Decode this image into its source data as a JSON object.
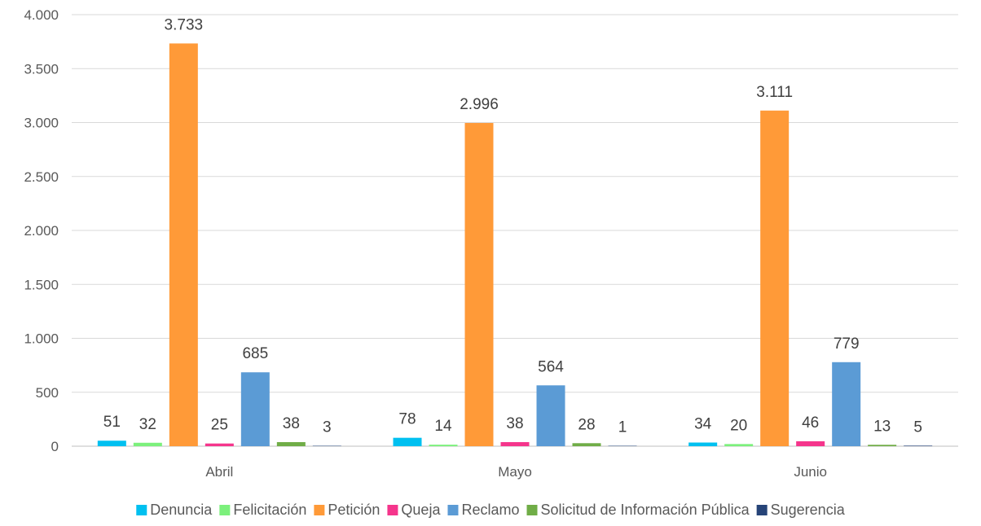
{
  "chart_data": {
    "type": "bar",
    "categories": [
      "Abril",
      "Mayo",
      "Junio"
    ],
    "series": [
      {
        "name": "Denuncia",
        "color": "#00C0F0",
        "values": [
          51,
          78,
          34
        ],
        "labels": [
          "51",
          "78",
          "34"
        ]
      },
      {
        "name": "Felicitación",
        "color": "#7CF07C",
        "values": [
          32,
          14,
          20
        ],
        "labels": [
          "32",
          "14",
          "20"
        ]
      },
      {
        "name": "Petición",
        "color": "#FF9A38",
        "values": [
          3733,
          2996,
          3111
        ],
        "labels": [
          "3.733",
          "2.996",
          "3.111"
        ]
      },
      {
        "name": "Queja",
        "color": "#F5358C",
        "values": [
          25,
          38,
          46
        ],
        "labels": [
          "25",
          "38",
          "46"
        ]
      },
      {
        "name": "Reclamo",
        "color": "#5B9BD5",
        "values": [
          685,
          564,
          779
        ],
        "labels": [
          "685",
          "564",
          "779"
        ]
      },
      {
        "name": "Solicitud de Información Pública",
        "color": "#70AD47",
        "values": [
          38,
          28,
          13
        ],
        "labels": [
          "38",
          "28",
          "13"
        ]
      },
      {
        "name": "Sugerencia",
        "color": "#264478",
        "values": [
          3,
          1,
          5
        ],
        "labels": [
          "3",
          "1",
          "5"
        ]
      }
    ],
    "ylim": [
      0,
      4000
    ],
    "yticks": [
      {
        "value": 0,
        "label": "0"
      },
      {
        "value": 500,
        "label": "500"
      },
      {
        "value": 1000,
        "label": "1.000"
      },
      {
        "value": 1500,
        "label": "1.500"
      },
      {
        "value": 2000,
        "label": "2.000"
      },
      {
        "value": 2500,
        "label": "2.500"
      },
      {
        "value": 3000,
        "label": "3.000"
      },
      {
        "value": 3500,
        "label": "3.500"
      },
      {
        "value": 4000,
        "label": "4.000"
      }
    ],
    "grid": true,
    "legend_position": "bottom"
  }
}
